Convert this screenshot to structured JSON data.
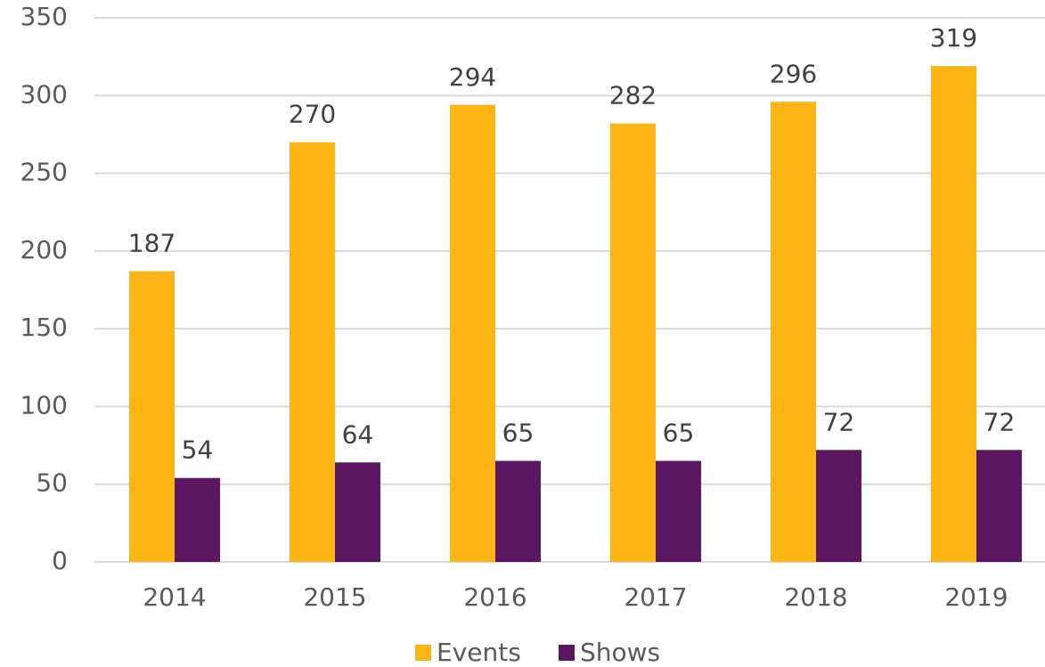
{
  "chart_data": {
    "type": "bar",
    "categories": [
      "2014",
      "2015",
      "2016",
      "2017",
      "2018",
      "2019"
    ],
    "series": [
      {
        "name": "Events",
        "color": "#fdb515",
        "values": [
          187,
          270,
          294,
          282,
          296,
          319
        ]
      },
      {
        "name": "Shows",
        "color": "#5c1763",
        "values": [
          54,
          64,
          65,
          65,
          72,
          72
        ]
      }
    ],
    "ylim": [
      0,
      350
    ],
    "yticks": [
      0,
      50,
      100,
      150,
      200,
      250,
      300,
      350
    ],
    "grid": true,
    "legend": "bottom"
  }
}
